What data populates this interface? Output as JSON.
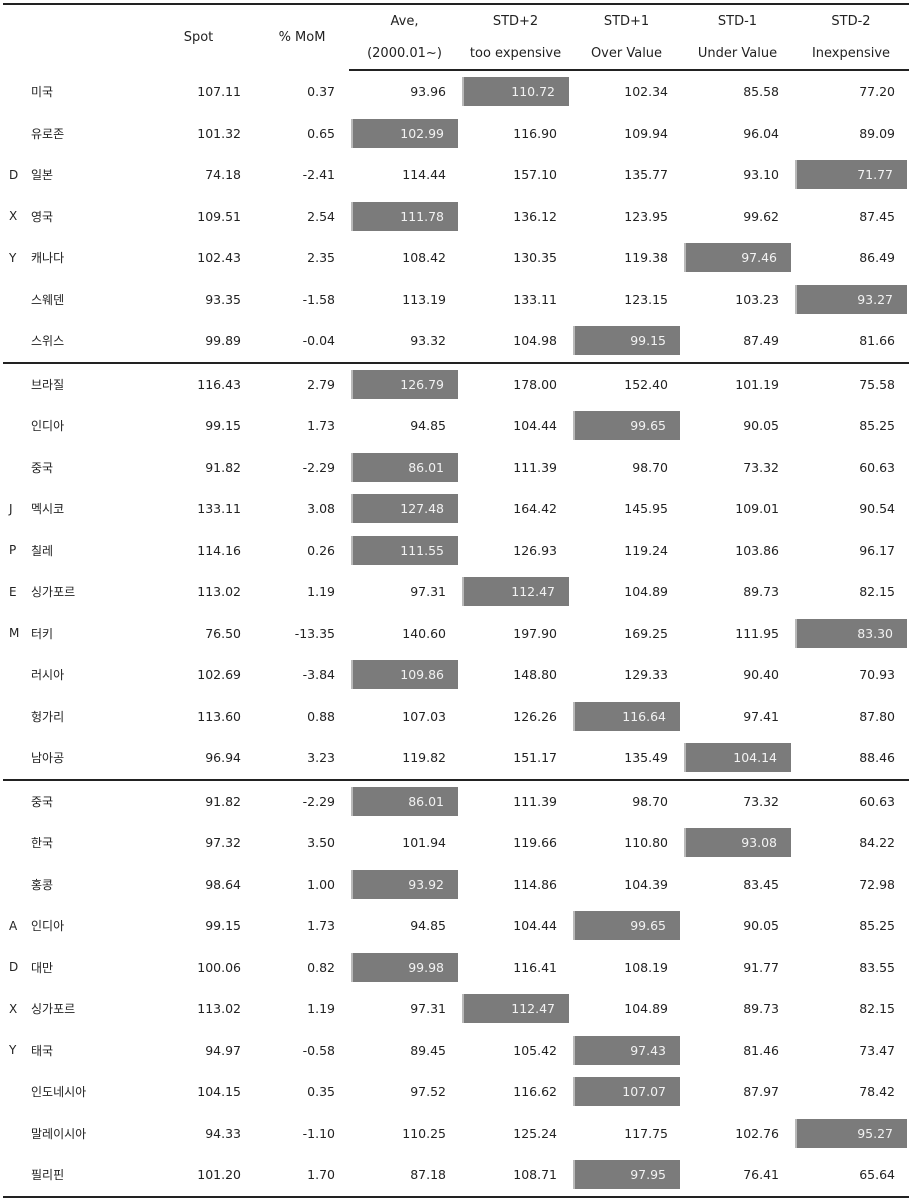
{
  "header": {
    "spot": "Spot",
    "mom": "% MoM",
    "ave_line1": "Ave,",
    "ave_line2": "(2000.01~)",
    "std_p2_line1": "STD+2",
    "std_p2_line2": "too expensive",
    "std_p1_line1": "STD+1",
    "std_p1_line2": "Over Value",
    "std_m1_line1": "STD-1",
    "std_m1_line2": "Under Value",
    "std_m2_line1": "STD-2",
    "std_m2_line2": "Inexpensive"
  },
  "highlight_color": "#7b7b7b",
  "groups": [
    {
      "label_letters": [
        "D",
        "X",
        "Y"
      ],
      "rows": [
        {
          "group": "",
          "name": "미국",
          "spot": "107.11",
          "mom": "0.37",
          "ave": "93.96",
          "s2": "110.72",
          "s1": "102.34",
          "m1": "85.58",
          "m2": "77.20",
          "hl": "s2"
        },
        {
          "group": "",
          "name": "유로존",
          "spot": "101.32",
          "mom": "0.65",
          "ave": "102.99",
          "s2": "116.90",
          "s1": "109.94",
          "m1": "96.04",
          "m2": "89.09",
          "hl": "ave"
        },
        {
          "group": "D",
          "name": "일본",
          "spot": "74.18",
          "mom": "-2.41",
          "ave": "114.44",
          "s2": "157.10",
          "s1": "135.77",
          "m1": "93.10",
          "m2": "71.77",
          "hl": "m2"
        },
        {
          "group": "X",
          "name": "영국",
          "spot": "109.51",
          "mom": "2.54",
          "ave": "111.78",
          "s2": "136.12",
          "s1": "123.95",
          "m1": "99.62",
          "m2": "87.45",
          "hl": "ave"
        },
        {
          "group": "Y",
          "name": "캐나다",
          "spot": "102.43",
          "mom": "2.35",
          "ave": "108.42",
          "s2": "130.35",
          "s1": "119.38",
          "m1": "97.46",
          "m2": "86.49",
          "hl": "m1"
        },
        {
          "group": "",
          "name": "스웨덴",
          "spot": "93.35",
          "mom": "-1.58",
          "ave": "113.19",
          "s2": "133.11",
          "s1": "123.15",
          "m1": "103.23",
          "m2": "93.27",
          "hl": "m2"
        },
        {
          "group": "",
          "name": "스위스",
          "spot": "99.89",
          "mom": "-0.04",
          "ave": "93.32",
          "s2": "104.98",
          "s1": "99.15",
          "m1": "87.49",
          "m2": "81.66",
          "hl": "s1"
        }
      ]
    },
    {
      "label_letters": [
        "J",
        "P",
        "E",
        "M"
      ],
      "rows": [
        {
          "group": "",
          "name": "브라질",
          "spot": "116.43",
          "mom": "2.79",
          "ave": "126.79",
          "s2": "178.00",
          "s1": "152.40",
          "m1": "101.19",
          "m2": "75.58",
          "hl": "ave"
        },
        {
          "group": "",
          "name": "인디아",
          "spot": "99.15",
          "mom": "1.73",
          "ave": "94.85",
          "s2": "104.44",
          "s1": "99.65",
          "m1": "90.05",
          "m2": "85.25",
          "hl": "s1"
        },
        {
          "group": "",
          "name": "중국",
          "spot": "91.82",
          "mom": "-2.29",
          "ave": "86.01",
          "s2": "111.39",
          "s1": "98.70",
          "m1": "73.32",
          "m2": "60.63",
          "hl": "ave"
        },
        {
          "group": "J",
          "name": "멕시코",
          "spot": "133.11",
          "mom": "3.08",
          "ave": "127.48",
          "s2": "164.42",
          "s1": "145.95",
          "m1": "109.01",
          "m2": "90.54",
          "hl": "ave"
        },
        {
          "group": "P",
          "name": "칠레",
          "spot": "114.16",
          "mom": "0.26",
          "ave": "111.55",
          "s2": "126.93",
          "s1": "119.24",
          "m1": "103.86",
          "m2": "96.17",
          "hl": "ave"
        },
        {
          "group": "E",
          "name": "싱가포르",
          "spot": "113.02",
          "mom": "1.19",
          "ave": "97.31",
          "s2": "112.47",
          "s1": "104.89",
          "m1": "89.73",
          "m2": "82.15",
          "hl": "s2"
        },
        {
          "group": "M",
          "name": "터키",
          "spot": "76.50",
          "mom": "-13.35",
          "ave": "140.60",
          "s2": "197.90",
          "s1": "169.25",
          "m1": "111.95",
          "m2": "83.30",
          "hl": "m2"
        },
        {
          "group": "",
          "name": "러시아",
          "spot": "102.69",
          "mom": "-3.84",
          "ave": "109.86",
          "s2": "148.80",
          "s1": "129.33",
          "m1": "90.40",
          "m2": "70.93",
          "hl": "ave"
        },
        {
          "group": "",
          "name": "헝가리",
          "spot": "113.60",
          "mom": "0.88",
          "ave": "107.03",
          "s2": "126.26",
          "s1": "116.64",
          "m1": "97.41",
          "m2": "87.80",
          "hl": "s1"
        },
        {
          "group": "",
          "name": "남아공",
          "spot": "96.94",
          "mom": "3.23",
          "ave": "119.82",
          "s2": "151.17",
          "s1": "135.49",
          "m1": "104.14",
          "m2": "88.46",
          "hl": "m1"
        }
      ]
    },
    {
      "label_letters": [
        "A",
        "D",
        "X",
        "Y"
      ],
      "rows": [
        {
          "group": "",
          "name": "중국",
          "spot": "91.82",
          "mom": "-2.29",
          "ave": "86.01",
          "s2": "111.39",
          "s1": "98.70",
          "m1": "73.32",
          "m2": "60.63",
          "hl": "ave"
        },
        {
          "group": "",
          "name": "한국",
          "spot": "97.32",
          "mom": "3.50",
          "ave": "101.94",
          "s2": "119.66",
          "s1": "110.80",
          "m1": "93.08",
          "m2": "84.22",
          "hl": "m1"
        },
        {
          "group": "",
          "name": "홍콩",
          "spot": "98.64",
          "mom": "1.00",
          "ave": "93.92",
          "s2": "114.86",
          "s1": "104.39",
          "m1": "83.45",
          "m2": "72.98",
          "hl": "ave"
        },
        {
          "group": "A",
          "name": "인디아",
          "spot": "99.15",
          "mom": "1.73",
          "ave": "94.85",
          "s2": "104.44",
          "s1": "99.65",
          "m1": "90.05",
          "m2": "85.25",
          "hl": "s1"
        },
        {
          "group": "D",
          "name": "대만",
          "spot": "100.06",
          "mom": "0.82",
          "ave": "99.98",
          "s2": "116.41",
          "s1": "108.19",
          "m1": "91.77",
          "m2": "83.55",
          "hl": "ave"
        },
        {
          "group": "X",
          "name": "싱가포르",
          "spot": "113.02",
          "mom": "1.19",
          "ave": "97.31",
          "s2": "112.47",
          "s1": "104.89",
          "m1": "89.73",
          "m2": "82.15",
          "hl": "s2"
        },
        {
          "group": "Y",
          "name": "태국",
          "spot": "94.97",
          "mom": "-0.58",
          "ave": "89.45",
          "s2": "105.42",
          "s1": "97.43",
          "m1": "81.46",
          "m2": "73.47",
          "hl": "s1"
        },
        {
          "group": "",
          "name": "인도네시아",
          "spot": "104.15",
          "mom": "0.35",
          "ave": "97.52",
          "s2": "116.62",
          "s1": "107.07",
          "m1": "87.97",
          "m2": "78.42",
          "hl": "s1"
        },
        {
          "group": "",
          "name": "말레이시아",
          "spot": "94.33",
          "mom": "-1.10",
          "ave": "110.25",
          "s2": "125.24",
          "s1": "117.75",
          "m1": "102.76",
          "m2": "95.27",
          "hl": "m2"
        },
        {
          "group": "",
          "name": "필리핀",
          "spot": "101.20",
          "mom": "1.70",
          "ave": "87.18",
          "s2": "108.71",
          "s1": "97.95",
          "m1": "76.41",
          "m2": "65.64",
          "hl": "s1"
        }
      ]
    }
  ]
}
